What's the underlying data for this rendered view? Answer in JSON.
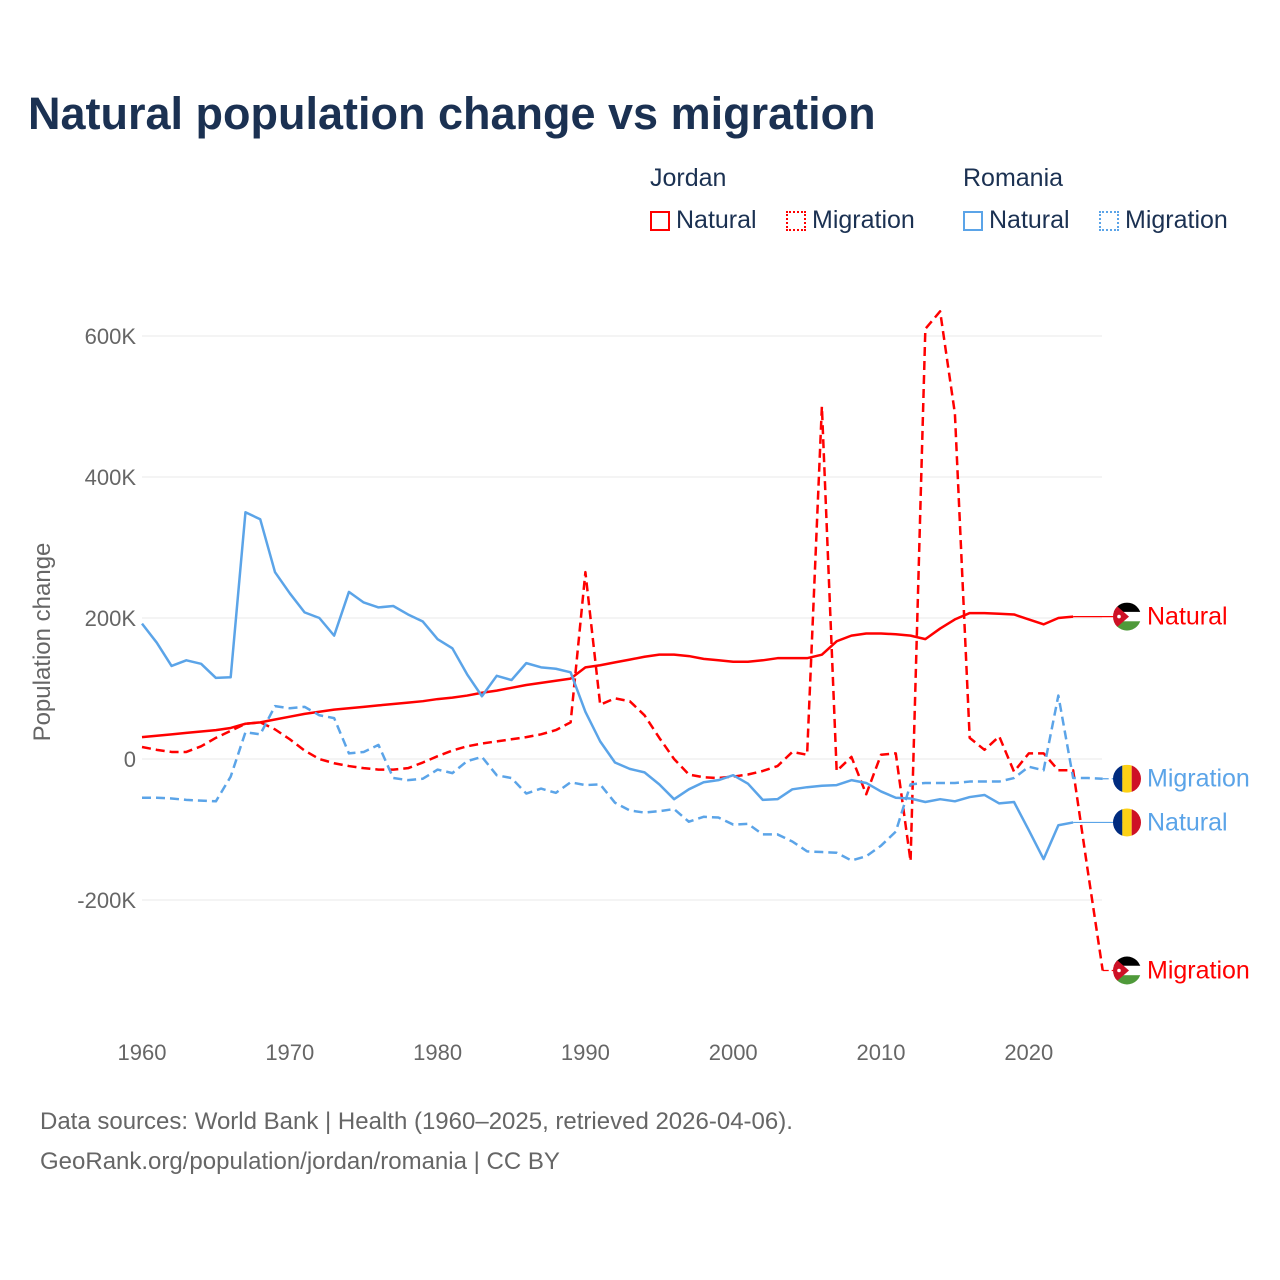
{
  "title": "Natural population change vs migration",
  "legend": {
    "groups": [
      {
        "name": "Jordan",
        "items": [
          {
            "label": "Natural",
            "style": "solid"
          },
          {
            "label": "Migration",
            "style": "dotted"
          }
        ]
      },
      {
        "name": "Romania",
        "items": [
          {
            "label": "Natural",
            "style": "solid"
          },
          {
            "label": "Migration",
            "style": "dotted"
          }
        ]
      }
    ]
  },
  "footer": {
    "line1": "Data sources: World Bank | Health (1960–2025, retrieved 2026-04-06).",
    "line2": "GeoRank.org/population/jordan/romania | CC BY"
  },
  "chart_data": {
    "type": "line",
    "title": "Natural population change vs migration",
    "xlabel": "",
    "ylabel": "Population change",
    "xlim": [
      1960,
      2025
    ],
    "ylim": [
      -320,
      680
    ],
    "xticks": [
      1960,
      1970,
      1980,
      1990,
      2000,
      2010,
      2020
    ],
    "xtick_labels": [
      "1960",
      "1970",
      "1980",
      "1990",
      "2000",
      "2010",
      "2020"
    ],
    "yticks": [
      -200,
      0,
      200,
      400,
      600
    ],
    "ytick_labels": [
      "-200K",
      "0",
      "200K",
      "400K",
      "600K"
    ],
    "units": "thousands",
    "grid": true,
    "legend_position": "top-right",
    "x_start": 1960,
    "series": [
      {
        "name": "Jordan Natural",
        "country": "Jordan",
        "kind": "Natural",
        "color": "#ff0000",
        "dash": false,
        "end_label": "Natural",
        "flag": "jordan",
        "values": [
          31,
          33,
          35,
          37,
          39,
          41,
          44,
          50,
          52,
          56,
          60,
          64,
          67,
          70,
          72,
          74,
          76,
          78,
          80,
          82,
          85,
          87,
          90,
          94,
          97,
          101,
          105,
          108,
          111,
          114,
          130,
          133,
          137,
          141,
          145,
          148,
          148,
          146,
          142,
          140,
          138,
          138,
          140,
          143,
          143,
          143,
          148,
          167,
          175,
          178,
          178,
          177,
          175,
          170,
          185,
          198,
          207,
          207,
          206,
          205,
          198,
          191,
          200,
          202
        ]
      },
      {
        "name": "Jordan Migration",
        "country": "Jordan",
        "kind": "Migration",
        "color": "#ff0000",
        "dash": true,
        "end_label": "Migration",
        "flag": "jordan",
        "values": [
          17,
          13,
          10,
          10,
          18,
          30,
          40,
          50,
          52,
          42,
          28,
          12,
          0,
          -6,
          -10,
          -13,
          -15,
          -15,
          -13,
          -5,
          4,
          12,
          18,
          22,
          25,
          28,
          31,
          35,
          41,
          52,
          265,
          77,
          86,
          82,
          62,
          30,
          0,
          -22,
          -26,
          -27,
          -25,
          -22,
          -17,
          -10,
          10,
          6,
          500,
          -17,
          3,
          -50,
          6,
          8,
          -145,
          610,
          635,
          490,
          30,
          13,
          32,
          -18,
          8,
          8,
          -16,
          -16,
          -160,
          -300
        ]
      },
      {
        "name": "Romania Natural",
        "country": "Romania",
        "kind": "Natural",
        "color": "#5ba4e8",
        "dash": false,
        "end_label": "Natural",
        "flag": "romania",
        "values": [
          192,
          165,
          132,
          140,
          135,
          115,
          116,
          350,
          340,
          265,
          235,
          208,
          200,
          175,
          237,
          222,
          215,
          217,
          205,
          195,
          170,
          157,
          120,
          89,
          118,
          112,
          136,
          130,
          128,
          123,
          67,
          25,
          -5,
          -14,
          -19,
          -36,
          -57,
          -43,
          -33,
          -30,
          -23,
          -35,
          -58,
          -57,
          -43,
          -40,
          -38,
          -37,
          -30,
          -34,
          -46,
          -55,
          -56,
          -61,
          -57,
          -60,
          -54,
          -51,
          -63,
          -61,
          -101,
          -142,
          -94,
          -90
        ]
      },
      {
        "name": "Romania Migration",
        "country": "Romania",
        "kind": "Migration",
        "color": "#5ba4e8",
        "dash": true,
        "end_label": "Migration",
        "flag": "romania",
        "values": [
          -55,
          -55,
          -56,
          -58,
          -59,
          -60,
          -25,
          38,
          35,
          75,
          72,
          74,
          62,
          58,
          8,
          10,
          20,
          -27,
          -30,
          -28,
          -15,
          -20,
          -3,
          3,
          -23,
          -27,
          -49,
          -42,
          -48,
          -33,
          -37,
          -36,
          -62,
          -73,
          -76,
          -74,
          -71,
          -89,
          -82,
          -83,
          -93,
          -92,
          -107,
          -107,
          -117,
          -131,
          -132,
          -133,
          -144,
          -138,
          -123,
          -103,
          -36,
          -34,
          -34,
          -34,
          -32,
          -32,
          -32,
          -27,
          -11,
          -16,
          90,
          -27,
          -27,
          -28
        ]
      }
    ]
  }
}
